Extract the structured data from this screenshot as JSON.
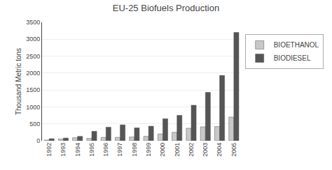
{
  "chart_data": {
    "type": "bar",
    "title": "EU-25 Biofuels Production",
    "ylabel": "Thousand Metric tons",
    "categories": [
      "1992",
      "1993",
      "1994",
      "1995",
      "1996",
      "1997",
      "1998",
      "1999",
      "2000",
      "2001",
      "2002",
      "2003",
      "2004",
      "2005"
    ],
    "series": [
      {
        "name": "BIOETHANOL",
        "color": "#c8c8c8",
        "values": [
          20,
          50,
          90,
          70,
          100,
          100,
          110,
          130,
          200,
          250,
          370,
          410,
          420,
          700
        ]
      },
      {
        "name": "BIODIESEL",
        "color": "#555555",
        "values": [
          60,
          80,
          130,
          280,
          400,
          470,
          380,
          430,
          650,
          750,
          1050,
          1430,
          1930,
          3200
        ]
      }
    ],
    "ylim": [
      0,
      3500
    ],
    "yticks": [
      0,
      500,
      1000,
      1500,
      2000,
      2500,
      3000,
      3500
    ],
    "grid": true,
    "legend": "right"
  }
}
